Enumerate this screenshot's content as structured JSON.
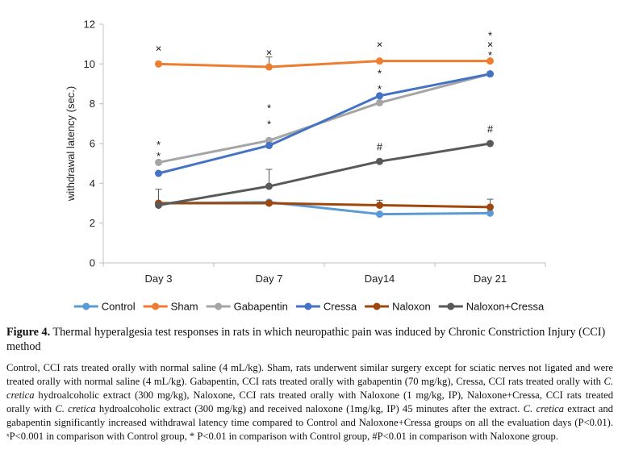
{
  "chart_data": {
    "type": "line",
    "categories": [
      "Day 3",
      "Day 7",
      "Day14",
      "Day 21"
    ],
    "ylabel": "withdrawal latency (sec.)",
    "ylim": [
      0,
      12
    ],
    "yticks": [
      "0",
      "2",
      "4",
      "6",
      "8",
      "10",
      "12"
    ],
    "grid": false,
    "legend_position": "bottom",
    "series": [
      {
        "name": "Control",
        "color": "#5b9bd5",
        "values": [
          3.0,
          3.05,
          2.45,
          2.5
        ],
        "err": [
          0.0,
          0.0,
          0.0,
          0.0
        ]
      },
      {
        "name": "Sham",
        "color": "#ed7d31",
        "values": [
          10.0,
          9.85,
          10.15,
          10.15
        ],
        "err": [
          0.0,
          0.5,
          0.0,
          0.0
        ]
      },
      {
        "name": "Gabapentin",
        "color": "#a5a5a5",
        "values": [
          5.05,
          6.15,
          8.05,
          9.5
        ],
        "err": [
          0.0,
          0.0,
          0.0,
          0.0
        ]
      },
      {
        "name": "Cressa",
        "color": "#4472c4",
        "values": [
          4.5,
          5.9,
          8.4,
          9.5
        ],
        "err": [
          0.0,
          0.0,
          0.0,
          0.0
        ]
      },
      {
        "name": "Naloxon",
        "color": "#9e480e",
        "values": [
          3.0,
          3.0,
          2.9,
          2.8
        ],
        "err": [
          0.7,
          0.0,
          0.25,
          0.4
        ]
      },
      {
        "name": "Naloxon+Cressa",
        "color": "#595959",
        "values": [
          2.9,
          3.85,
          5.1,
          6.0
        ],
        "err": [
          0.0,
          0.85,
          0.0,
          0.0
        ]
      }
    ],
    "annotations": [
      {
        "category": 0,
        "y": 10.8,
        "text": "×"
      },
      {
        "category": 0,
        "y": 5.95,
        "text": "*"
      },
      {
        "category": 0,
        "y": 5.4,
        "text": "*"
      },
      {
        "category": 1,
        "y": 10.6,
        "text": "×"
      },
      {
        "category": 1,
        "y": 7.8,
        "text": "*"
      },
      {
        "category": 1,
        "y": 7.0,
        "text": "*"
      },
      {
        "category": 2,
        "y": 11.0,
        "text": "×"
      },
      {
        "category": 2,
        "y": 9.55,
        "text": "*"
      },
      {
        "category": 2,
        "y": 8.75,
        "text": "*"
      },
      {
        "category": 2,
        "y": 5.85,
        "text": "#"
      },
      {
        "category": 3,
        "y": 11.45,
        "text": "*"
      },
      {
        "category": 3,
        "y": 11.0,
        "text": "×"
      },
      {
        "category": 3,
        "y": 10.45,
        "text": "*"
      },
      {
        "category": 3,
        "y": 6.75,
        "text": "#"
      }
    ]
  },
  "caption": {
    "title_label": "Figure 4.",
    "title_text": " Thermal hyperalgesia test responses in rats in which neuropathic pain was induced by Chronic Constriction Injury (CCI) method",
    "d1": "Control, CCI rats treated orally with normal saline (4 mL/kg). Sham, rats underwent similar surgery except for sciatic nerves not ligated and were treated orally with normal saline (4 mL/kg). Gabapentin, CCI rats treated orally with gabapentin (70 mg/kg), Cressa, CCI rats treated orally with ",
    "i1": "C. cretica",
    "d2": " hydroalcoholic extract (300 mg/kg), Naloxone, CCI rats treated orally with Naloxone (1 mg/kg, IP), Naloxone+Cressa, CCI rats treated orally with ",
    "i2": "C. cretica",
    "d3": " hydroalcoholic extract (300 mg/kg) and received naloxone (1mg/kg, IP) 45 minutes after the extract. ",
    "i3": "C. cretica",
    "d4": " extract and gabapentin significantly increased withdrawal latency time compared to Control and Naloxone+Cressa groups on all the evaluation days (P<0.01). ˣP<0.001 in comparison with Control group, * P<0.01 in comparison with Control group, #P<0.01 in comparison with Naloxone group."
  }
}
